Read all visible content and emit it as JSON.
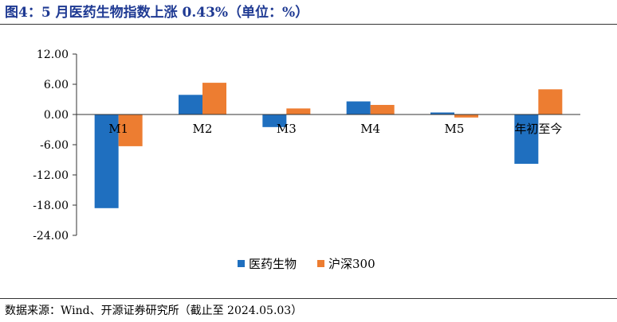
{
  "header": {
    "title": "图4：5 月医药生物指数上涨 0.43%（单位：%）"
  },
  "footer": {
    "source": "数据来源：Wind、开源证券研究所（截止至 2024.05.03）"
  },
  "chart_data": {
    "type": "bar",
    "categories": [
      "M1",
      "M2",
      "M3",
      "M4",
      "M5",
      "年初至今"
    ],
    "series": [
      {
        "name": "医药生物",
        "color": "#1f6fbf",
        "values": [
          -18.6,
          3.9,
          -2.5,
          2.6,
          0.4,
          -9.8
        ]
      },
      {
        "name": "沪深300",
        "color": "#ed7d31",
        "values": [
          -6.3,
          6.3,
          1.2,
          1.9,
          -0.6,
          5.0
        ]
      }
    ],
    "ylim": [
      -24,
      12
    ],
    "yticks": [
      "12.00",
      "6.00",
      "0.00",
      "-6.00",
      "-12.00",
      "-18.00",
      "-24.00"
    ],
    "ytick_values": [
      12,
      6,
      0,
      -6,
      -12,
      -18,
      -24
    ],
    "legend": "bottom-center",
    "grid": false
  }
}
